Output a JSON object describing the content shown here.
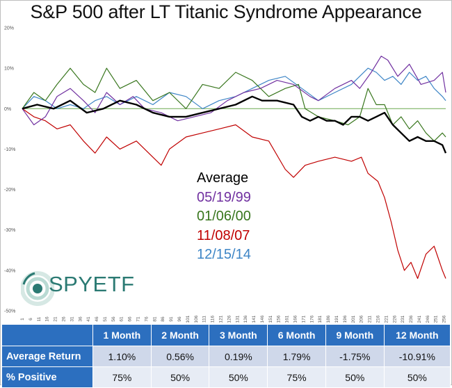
{
  "chart_data": {
    "type": "line",
    "title": "S&P 500 after LT Titanic Syndrome Appearance",
    "ylim": [
      -0.5,
      0.2
    ],
    "yticks": [
      "20%",
      "10%",
      "0%",
      "-10%",
      "-20%",
      "-30%",
      "-40%",
      "-50%"
    ],
    "ytick_values": [
      0.2,
      0.1,
      0.0,
      -0.1,
      -0.2,
      -0.3,
      -0.4,
      -0.5
    ],
    "xticks": [
      1,
      6,
      11,
      16,
      21,
      26,
      31,
      36,
      41,
      46,
      51,
      56,
      61,
      66,
      71,
      76,
      81,
      86,
      91,
      96,
      101,
      106,
      111,
      116,
      121,
      126,
      131,
      136,
      141,
      146,
      151,
      156,
      161,
      166,
      171,
      176,
      181,
      186,
      191,
      196,
      201,
      206,
      211,
      216,
      221,
      226,
      231,
      236,
      241,
      246,
      251,
      256
    ],
    "zero_line_color": "#6aa84f",
    "series": [
      {
        "name": "Average",
        "color": "#000000",
        "width": 2.4,
        "x": [
          1,
          10,
          20,
          30,
          40,
          50,
          60,
          70,
          80,
          90,
          100,
          110,
          120,
          130,
          140,
          146,
          155,
          165,
          170,
          175,
          180,
          185,
          190,
          195,
          200,
          205,
          210,
          215,
          220,
          225,
          230,
          235,
          240,
          245,
          250,
          255,
          257
        ],
        "y": [
          0.0,
          0.01,
          0.0,
          0.02,
          -0.01,
          0.0,
          0.02,
          0.01,
          -0.01,
          -0.02,
          -0.02,
          -0.01,
          0.0,
          0.01,
          0.03,
          0.02,
          0.02,
          0.01,
          -0.02,
          -0.03,
          -0.02,
          -0.03,
          -0.03,
          -0.04,
          -0.02,
          -0.02,
          -0.03,
          -0.02,
          -0.01,
          -0.04,
          -0.06,
          -0.08,
          -0.07,
          -0.08,
          -0.08,
          -0.09,
          -0.11
        ]
      },
      {
        "name": "05/19/99",
        "color": "#7030a0",
        "width": 1.2,
        "x": [
          1,
          8,
          15,
          22,
          30,
          38,
          45,
          52,
          60,
          68,
          75,
          85,
          95,
          105,
          115,
          125,
          135,
          145,
          155,
          165,
          175,
          180,
          190,
          200,
          205,
          212,
          218,
          222,
          228,
          235,
          242,
          250,
          255,
          257
        ],
        "y": [
          0.0,
          -0.04,
          -0.02,
          0.03,
          0.05,
          0.02,
          -0.01,
          0.04,
          0.01,
          0.03,
          0.0,
          -0.01,
          -0.03,
          -0.02,
          -0.01,
          0.02,
          0.04,
          0.05,
          0.07,
          0.06,
          0.03,
          0.02,
          0.05,
          0.07,
          0.05,
          0.09,
          0.13,
          0.12,
          0.08,
          0.11,
          0.06,
          0.07,
          0.09,
          0.04
        ]
      },
      {
        "name": "01/06/00",
        "color": "#38761d",
        "width": 1.2,
        "x": [
          1,
          8,
          15,
          22,
          30,
          38,
          45,
          52,
          60,
          70,
          80,
          90,
          100,
          110,
          120,
          130,
          140,
          150,
          160,
          168,
          172,
          180,
          190,
          198,
          205,
          210,
          215,
          220,
          225,
          230,
          235,
          240,
          245,
          250,
          255,
          257
        ],
        "y": [
          0.0,
          0.04,
          0.02,
          0.06,
          0.1,
          0.06,
          0.04,
          0.1,
          0.05,
          0.07,
          0.02,
          0.04,
          0.0,
          0.06,
          0.05,
          0.09,
          0.07,
          0.03,
          0.05,
          0.06,
          0.0,
          -0.02,
          -0.03,
          -0.04,
          -0.02,
          0.05,
          0.01,
          0.01,
          -0.04,
          -0.02,
          -0.05,
          -0.03,
          -0.06,
          -0.08,
          -0.06,
          -0.07
        ]
      },
      {
        "name": "11/08/07",
        "color": "#c00000",
        "width": 1.2,
        "x": [
          1,
          8,
          15,
          22,
          30,
          38,
          45,
          52,
          60,
          70,
          80,
          85,
          90,
          100,
          110,
          120,
          130,
          140,
          150,
          160,
          165,
          172,
          180,
          190,
          200,
          206,
          210,
          216,
          220,
          224,
          228,
          232,
          236,
          240,
          245,
          250,
          255,
          257
        ],
        "y": [
          0.0,
          -0.02,
          -0.03,
          -0.05,
          -0.04,
          -0.08,
          -0.11,
          -0.07,
          -0.1,
          -0.08,
          -0.12,
          -0.14,
          -0.1,
          -0.07,
          -0.06,
          -0.05,
          -0.04,
          -0.07,
          -0.08,
          -0.15,
          -0.17,
          -0.14,
          -0.13,
          -0.12,
          -0.13,
          -0.12,
          -0.16,
          -0.18,
          -0.22,
          -0.28,
          -0.35,
          -0.4,
          -0.38,
          -0.42,
          -0.36,
          -0.34,
          -0.4,
          -0.42
        ]
      },
      {
        "name": "12/15/14",
        "color": "#3d85c6",
        "width": 1.2,
        "x": [
          1,
          8,
          15,
          22,
          30,
          38,
          45,
          52,
          60,
          70,
          80,
          90,
          100,
          110,
          120,
          130,
          140,
          150,
          160,
          170,
          180,
          190,
          200,
          210,
          215,
          220,
          225,
          230,
          235,
          240,
          245,
          250,
          255,
          257
        ],
        "y": [
          0.0,
          0.03,
          0.02,
          0.0,
          0.01,
          0.0,
          0.02,
          0.03,
          0.01,
          0.03,
          0.01,
          0.04,
          0.03,
          0.0,
          0.02,
          0.03,
          0.05,
          0.07,
          0.08,
          0.05,
          0.02,
          0.04,
          0.06,
          0.1,
          0.09,
          0.07,
          0.08,
          0.06,
          0.09,
          0.07,
          0.08,
          0.05,
          0.03,
          0.02
        ]
      }
    ]
  },
  "legend": {
    "entries": [
      {
        "label": "Average",
        "color": "#000000"
      },
      {
        "label": "05/19/99",
        "color": "#7030a0"
      },
      {
        "label": "01/06/00",
        "color": "#38761d"
      },
      {
        "label": "11/08/07",
        "color": "#c00000"
      },
      {
        "label": "12/15/14",
        "color": "#3d85c6"
      }
    ]
  },
  "logo": {
    "text": "SPYETF",
    "brand": "iSPYETF",
    "color": "#2b7a73"
  },
  "table": {
    "header_color": "#2c6fbf",
    "columns": [
      "1 Month",
      "2 Month",
      "3 Month",
      "6 Month",
      "9 Month",
      "12 Month"
    ],
    "rows": [
      {
        "label": "Average Return",
        "values": [
          "1.10%",
          "0.56%",
          "0.19%",
          "1.79%",
          "-1.75%",
          "-10.91%"
        ]
      },
      {
        "label": "% Positive",
        "values": [
          "75%",
          "50%",
          "50%",
          "75%",
          "50%",
          "50%"
        ]
      }
    ]
  }
}
